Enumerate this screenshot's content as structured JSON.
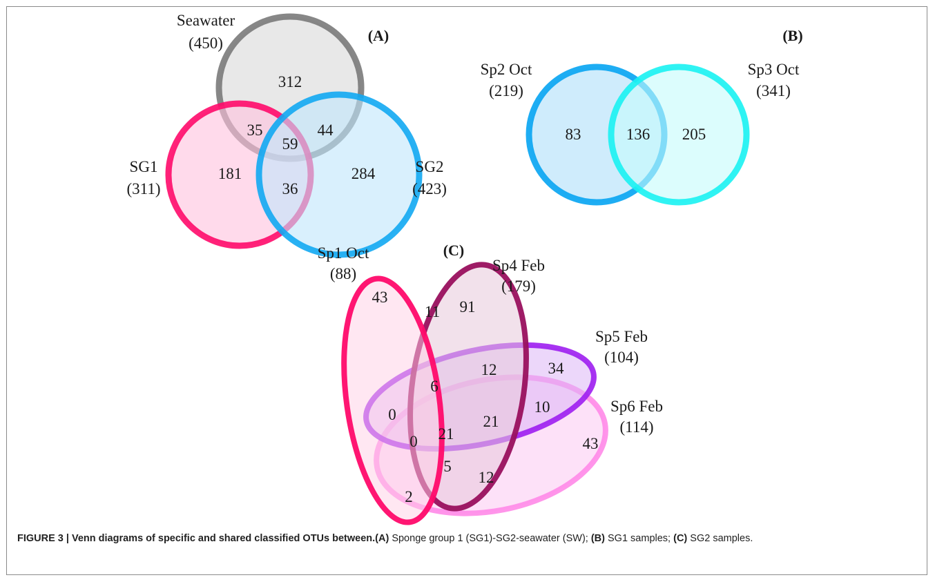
{
  "panels": {
    "a": {
      "label": "(A)",
      "sets": {
        "seawater": {
          "name": "Seawater",
          "total": "(450)",
          "stroke": "#7a7a7a",
          "fill": "#d9d9d9"
        },
        "sg1": {
          "name": "SG1",
          "total": "(311)",
          "stroke": "#ff0a6a",
          "fill": "#ffc2dd"
        },
        "sg2": {
          "name": "SG2",
          "total": "(423)",
          "stroke": "#12a9f2",
          "fill": "#bfe6fb"
        }
      },
      "regions": {
        "seawater_only": "312",
        "sw_sg1": "35",
        "sw_sg2": "44",
        "all_three": "59",
        "sg1_only": "181",
        "sg1_sg2": "36",
        "sg2_only": "284"
      }
    },
    "b": {
      "label": "(B)",
      "sets": {
        "sp2": {
          "name": "Sp2 Oct",
          "total": "(219)",
          "stroke": "#12a9f2",
          "fill": "#bfe6fb"
        },
        "sp3": {
          "name": "Sp3 Oct",
          "total": "(341)",
          "stroke": "#19f2f2",
          "fill": "#c4fcfc"
        }
      },
      "regions": {
        "sp2_only": "83",
        "both": "136",
        "sp3_only": "205"
      }
    },
    "c": {
      "label": "(C)",
      "sets": {
        "sp1": {
          "name": "Sp1 Oct",
          "total": "(88)",
          "stroke": "#ff0a6a",
          "fill": "#ffd0e6"
        },
        "sp4": {
          "name": "Sp4 Feb",
          "total": "(179)",
          "stroke": "#99105e",
          "fill": "#e8c9da"
        },
        "sp5": {
          "name": "Sp5 Feb",
          "total": "(104)",
          "stroke": "#9d1ef0",
          "fill": "#ddb7f5"
        },
        "sp6": {
          "name": "Sp6 Feb",
          "total": "(114)",
          "stroke": "#ff8ae8",
          "fill": "#fbc9f2"
        }
      },
      "regions": {
        "sp1_only": "43",
        "sp1_sp4": "11",
        "sp4_only": "91",
        "sp4_sp5": "12",
        "sp5_only": "34",
        "sp1_sp4_sp5": "6",
        "sp1_sp5": "0",
        "sp5_sp6": "10",
        "sp4_sp5_sp6": "21",
        "all_four": "21",
        "sp1_sp5_sp6": "0",
        "sp6_only": "43",
        "sp1_sp6": "2",
        "sp1_sp4_sp6": "5",
        "sp4_sp6": "12"
      }
    }
  },
  "caption": {
    "figure_label": "FIGURE 3 | Venn diagrams of specific and shared classified OTUs between.",
    "a_tag": "(A)",
    "a_text": " Sponge group 1 (SG1)-SG2-seawater (SW); ",
    "b_tag": "(B)",
    "b_text": " SG1 samples; ",
    "c_tag": "(C)",
    "c_text": " SG2 samples."
  }
}
